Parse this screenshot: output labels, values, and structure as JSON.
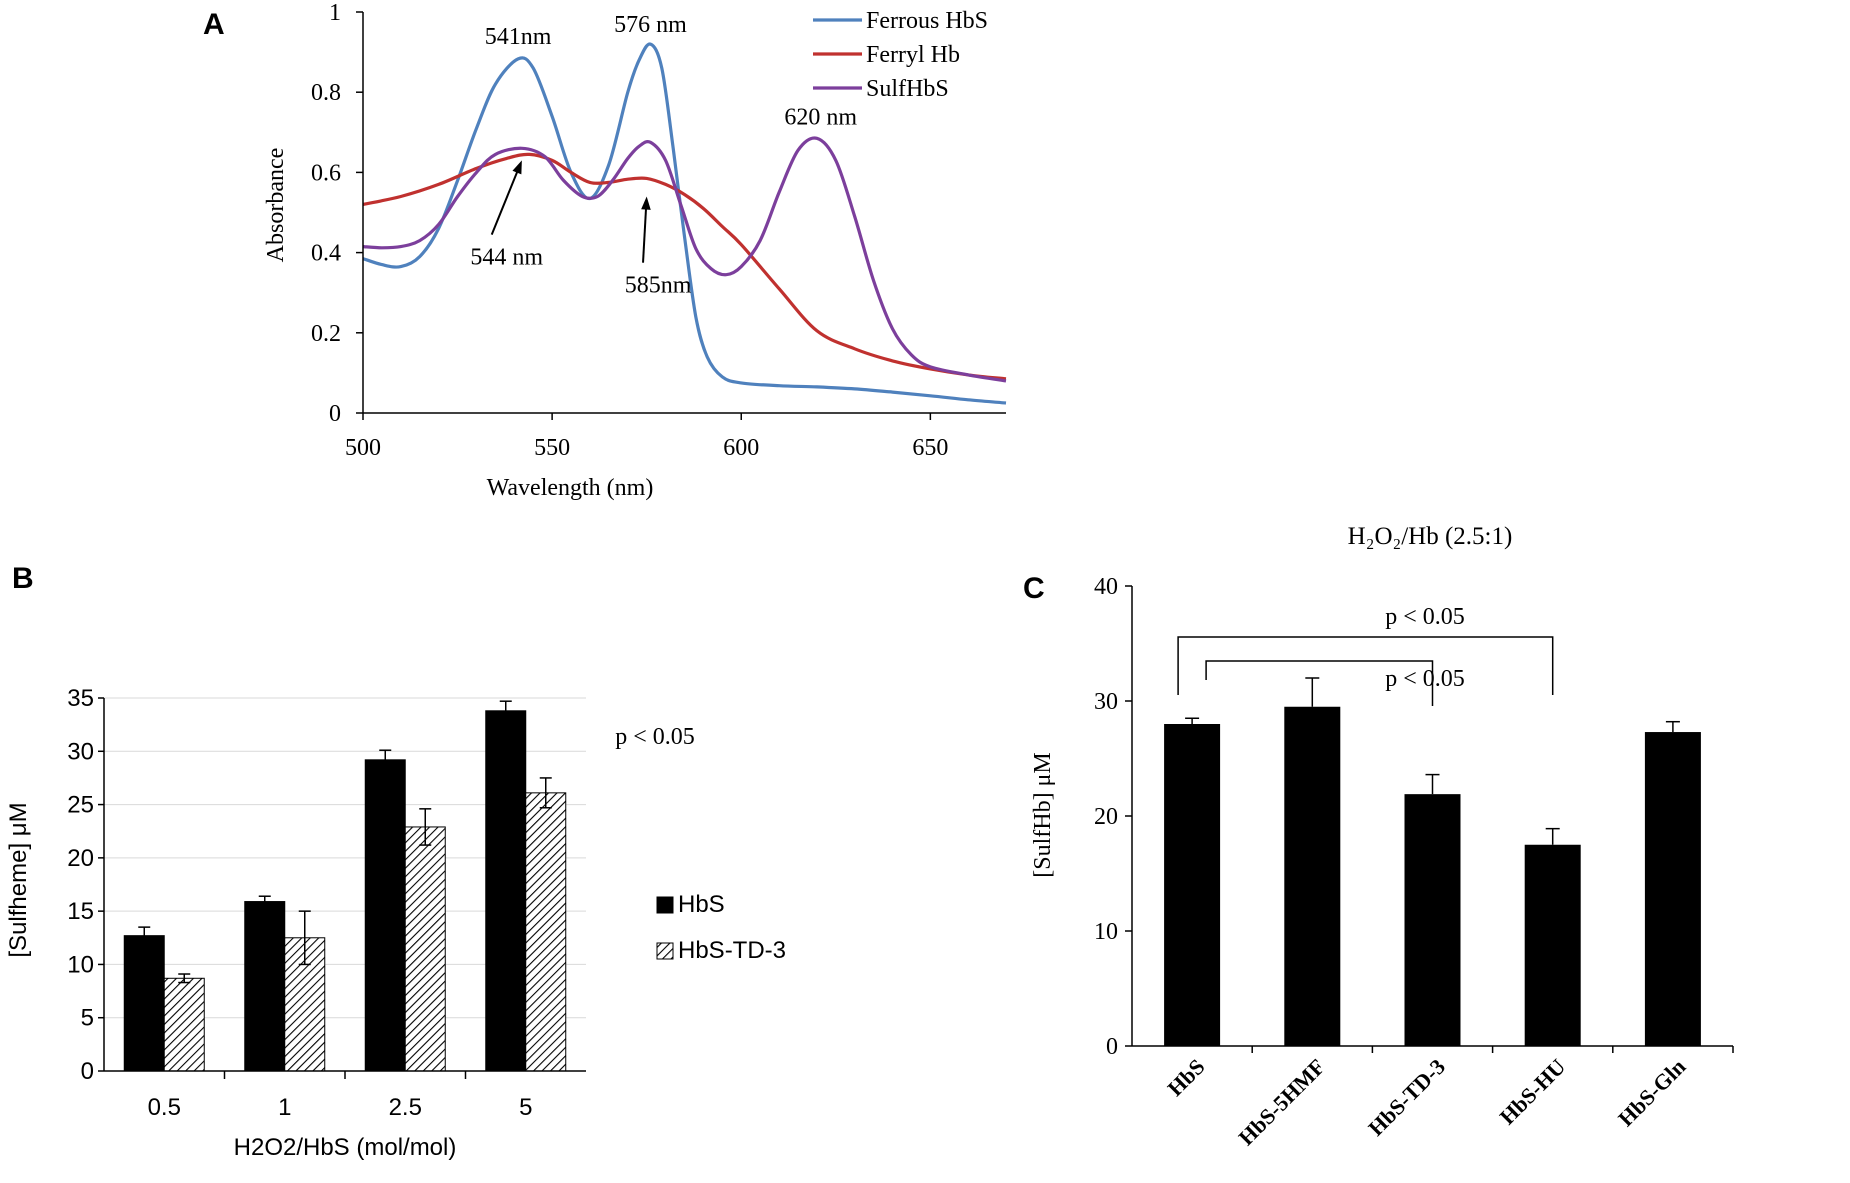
{
  "panels": [
    {
      "id": "A",
      "letter": "A"
    },
    {
      "id": "B",
      "letter": "B"
    },
    {
      "id": "C",
      "letter": "C"
    }
  ],
  "chart_data": [
    {
      "id": "A",
      "type": "line",
      "title": "",
      "xlabel": "Wavelength (nm)",
      "ylabel": "Absorbance",
      "xlim": [
        500,
        670
      ],
      "ylim": [
        0,
        1
      ],
      "xticks": [
        500,
        550,
        600,
        650
      ],
      "yticks": [
        0,
        0.2,
        0.4,
        0.6,
        0.8,
        1
      ],
      "legend_position": "top-right",
      "series": [
        {
          "name": "Ferrous HbS",
          "color": "#4f81bd",
          "x": [
            500,
            505,
            510,
            515,
            520,
            525,
            530,
            535,
            541,
            545,
            550,
            555,
            560,
            565,
            570,
            573,
            576,
            579,
            582,
            585,
            588,
            591,
            595,
            600,
            610,
            620,
            630,
            640,
            650,
            660,
            670
          ],
          "y": [
            0.385,
            0.37,
            0.365,
            0.39,
            0.46,
            0.58,
            0.71,
            0.82,
            0.883,
            0.86,
            0.74,
            0.6,
            0.535,
            0.62,
            0.8,
            0.88,
            0.92,
            0.86,
            0.66,
            0.44,
            0.24,
            0.14,
            0.09,
            0.075,
            0.068,
            0.065,
            0.06,
            0.052,
            0.043,
            0.033,
            0.025
          ]
        },
        {
          "name": "Ferryl Hb",
          "color": "#c0312f",
          "x": [
            500,
            510,
            520,
            530,
            538,
            544,
            550,
            555,
            560,
            565,
            570,
            575,
            580,
            585,
            590,
            595,
            600,
            610,
            620,
            630,
            640,
            650,
            660,
            670
          ],
          "y": [
            0.52,
            0.54,
            0.57,
            0.61,
            0.635,
            0.645,
            0.63,
            0.6,
            0.575,
            0.575,
            0.583,
            0.585,
            0.57,
            0.545,
            0.51,
            0.465,
            0.42,
            0.31,
            0.205,
            0.16,
            0.13,
            0.11,
            0.095,
            0.085
          ]
        },
        {
          "name": "SulfHbS",
          "color": "#7c3f9c",
          "x": [
            500,
            505,
            510,
            515,
            520,
            525,
            530,
            535,
            542,
            548,
            553,
            558,
            562,
            566,
            570,
            573,
            576,
            580,
            584,
            588,
            592,
            596,
            600,
            605,
            610,
            615,
            620,
            625,
            630,
            635,
            640,
            645,
            650,
            660,
            670
          ],
          "y": [
            0.415,
            0.412,
            0.415,
            0.43,
            0.47,
            0.54,
            0.6,
            0.645,
            0.66,
            0.64,
            0.58,
            0.54,
            0.54,
            0.58,
            0.635,
            0.665,
            0.675,
            0.63,
            0.52,
            0.41,
            0.36,
            0.345,
            0.365,
            0.43,
            0.55,
            0.655,
            0.685,
            0.63,
            0.49,
            0.33,
            0.21,
            0.145,
            0.115,
            0.095,
            0.08
          ]
        }
      ],
      "annotations": [
        {
          "text": "541nm",
          "x": 541,
          "y": 0.92
        },
        {
          "text": "576 nm",
          "x": 576,
          "y": 0.95
        },
        {
          "text": "620 nm",
          "x": 621,
          "y": 0.72
        },
        {
          "text": "544 nm",
          "arrow_to": [
            542,
            0.645
          ],
          "x": 538,
          "y": 0.37
        },
        {
          "text": "585nm",
          "arrow_to": [
            575,
            0.555
          ],
          "x": 578,
          "y": 0.3
        }
      ]
    },
    {
      "id": "B",
      "type": "bar",
      "title": "",
      "xlabel": "H2O2/HbS (mol/mol)",
      "ylabel": "[Sulfheme] μM",
      "categories": [
        "0.5",
        "1",
        "2.5",
        "5"
      ],
      "ylim": [
        0,
        35
      ],
      "yticks": [
        0,
        5,
        10,
        15,
        20,
        25,
        30,
        35
      ],
      "legend_position": "right",
      "annotation": "p < 0.05",
      "series": [
        {
          "name": "HbS",
          "fill": "solid",
          "values": [
            12.7,
            15.9,
            29.2,
            33.8
          ],
          "errors": [
            0.8,
            0.5,
            0.9,
            0.9
          ]
        },
        {
          "name": "HbS-TD-3",
          "fill": "hatched",
          "values": [
            8.7,
            12.5,
            22.9,
            26.1
          ],
          "errors": [
            0.4,
            2.5,
            1.7,
            1.4
          ]
        }
      ]
    },
    {
      "id": "C",
      "type": "bar",
      "title": "H₂O₂/Hb (2.5:1)",
      "xlabel": "",
      "ylabel": "[SulfHb] μM",
      "categories": [
        "HbS",
        "HbS-5HMF",
        "HbS-TD-3",
        "HbS-HU",
        "HbS-Gln"
      ],
      "ylim": [
        0,
        40
      ],
      "yticks": [
        0,
        10,
        20,
        30,
        40
      ],
      "series": [
        {
          "name": "SulfHb",
          "values": [
            28.0,
            29.5,
            21.9,
            17.5,
            27.3
          ],
          "errors": [
            0.5,
            2.5,
            1.7,
            1.4,
            0.9
          ]
        }
      ],
      "brackets": [
        {
          "from": "HbS",
          "to": "HbS-HU",
          "text": "p < 0.05"
        },
        {
          "from": "HbS",
          "to": "HbS-TD-3",
          "text": "p < 0.05"
        }
      ]
    }
  ]
}
